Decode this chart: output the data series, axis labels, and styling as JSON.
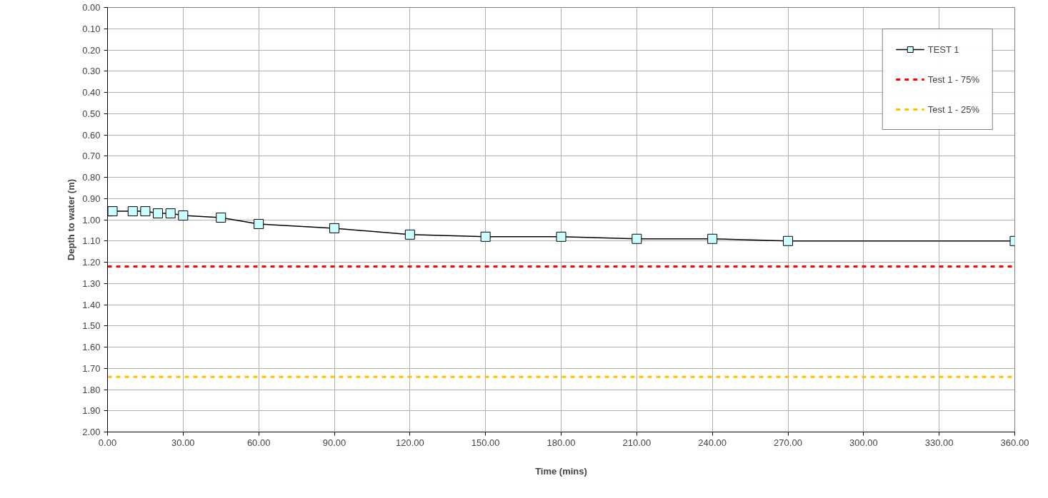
{
  "chart_data": {
    "type": "line",
    "xlabel": "Time (mins)",
    "ylabel": "Depth to water (m)",
    "x": [
      0,
      2,
      10,
      15,
      20,
      25,
      30,
      45,
      60,
      90,
      120,
      150,
      180,
      210,
      240,
      270,
      360
    ],
    "series": [
      {
        "name": "TEST 1",
        "color": "#000000",
        "values": [
          0.96,
          0.96,
          0.96,
          0.96,
          0.97,
          0.97,
          0.98,
          0.99,
          1.02,
          1.04,
          1.07,
          1.08,
          1.08,
          1.09,
          1.09,
          1.1,
          1.1
        ]
      }
    ],
    "marker": "square",
    "line_style": "solid",
    "ref_lines": [
      {
        "axis": "y",
        "value": 1.22,
        "label": "Test 1 - 75%",
        "color": "#ff0000",
        "line_style": "dashed"
      },
      {
        "axis": "y",
        "value": 1.74,
        "label": "Test 1 - 25%",
        "color": "#ffc000",
        "line_style": "dashed"
      }
    ],
    "xlim": [
      0,
      360
    ],
    "xticks": [
      {
        "value": 0,
        "label": "0.00"
      },
      {
        "value": 30,
        "label": "30.00"
      },
      {
        "value": 60,
        "label": "60.00"
      },
      {
        "value": 90,
        "label": "90.00"
      },
      {
        "value": 120,
        "label": "120.00"
      },
      {
        "value": 150,
        "label": "150.00"
      },
      {
        "value": 180,
        "label": "180.00"
      },
      {
        "value": 210,
        "label": "210.00"
      },
      {
        "value": 240,
        "label": "240.00"
      },
      {
        "value": 270,
        "label": "270.00"
      },
      {
        "value": 300,
        "label": "300.00"
      },
      {
        "value": 330,
        "label": "330.00"
      },
      {
        "value": 360,
        "label": "360.00"
      }
    ],
    "ylim": [
      2.0,
      0.0
    ],
    "yticks": [
      {
        "value": 0,
        "label": "0.00"
      },
      {
        "value": 0.1,
        "label": "0.10"
      },
      {
        "value": 0.2,
        "label": "0.20"
      },
      {
        "value": 0.3,
        "label": "0.30"
      },
      {
        "value": 0.4,
        "label": "0.40"
      },
      {
        "value": 0.5,
        "label": "0.50"
      },
      {
        "value": 0.6,
        "label": "0.60"
      },
      {
        "value": 0.7,
        "label": "0.70"
      },
      {
        "value": 0.8,
        "label": "0.80"
      },
      {
        "value": 0.9,
        "label": "0.90"
      },
      {
        "value": 1.0,
        "label": "1.00"
      },
      {
        "value": 1.1,
        "label": "1.10"
      },
      {
        "value": 1.2,
        "label": "1.20"
      },
      {
        "value": 1.3,
        "label": "1.30"
      },
      {
        "value": 1.4,
        "label": "1.40"
      },
      {
        "value": 1.5,
        "label": "1.50"
      },
      {
        "value": 1.6,
        "label": "1.60"
      },
      {
        "value": 1.7,
        "label": "1.70"
      },
      {
        "value": 1.8,
        "label": "1.80"
      },
      {
        "value": 1.9,
        "label": "1.90"
      },
      {
        "value": 2.0,
        "label": "2.00"
      }
    ],
    "grid": true,
    "legend": "top right"
  }
}
